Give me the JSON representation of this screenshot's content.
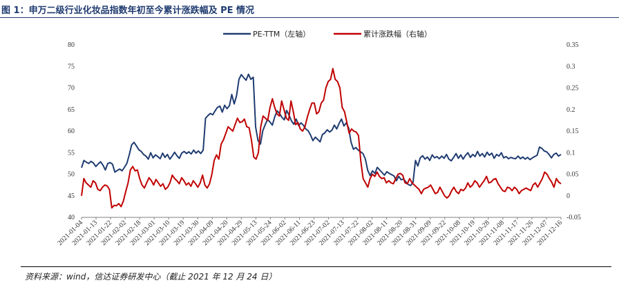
{
  "figure_title": "图 1：申万二级行业化妆品指数年初至今累计涨跌幅及 PE 情况",
  "source_note": "资料来源：wind，信达证券研发中心（截止 2021 年 12 月 24 日）",
  "colors": {
    "pe": "#1f3b70",
    "cum": "#c00000",
    "axis": "#7f7f7f",
    "title": "#1f3b70"
  },
  "chart_data": {
    "type": "line",
    "title": "",
    "legend_position": "top-center",
    "legend": [
      "PE-TTM（左轴）",
      "累计涨跌幅（右轴）"
    ],
    "y_left": {
      "min": 40,
      "max": 80,
      "ticks": [
        "80",
        "75",
        "70",
        "65",
        "60",
        "55",
        "50",
        "45",
        "40"
      ]
    },
    "y_right": {
      "min": -0.05,
      "max": 0.35,
      "ticks": [
        "0.35",
        "0.3",
        "0.25",
        "0.2",
        "0.15",
        "0.1",
        "0.05",
        "0",
        "-0.05"
      ]
    },
    "x_tick_labels": [
      "2021-01-04",
      "2021-01-13",
      "2021-01-22",
      "2021-02-02",
      "2021-02-18",
      "2021-03-01",
      "2021-03-10",
      "2021-03-19",
      "2021-03-30",
      "2021-04-09",
      "2021-04-20",
      "2021-04-29",
      "2021-05-13",
      "2021-05-24",
      "2021-06-02",
      "2021-06-11",
      "2021-06-23",
      "2021-07-02",
      "2021-07-13",
      "2021-07-22",
      "2021-08-02",
      "2021-08-11",
      "2021-08-20",
      "2021-08-31",
      "2021-09-09",
      "2021-09-22",
      "2021-10-08",
      "2021-10-19",
      "2021-10-28",
      "2021-11-08",
      "2021-11-17",
      "2021-11-26",
      "2021-12-07",
      "2021-12-16"
    ],
    "series": [
      {
        "name": "PE-TTM（左轴）",
        "axis": "left",
        "values": [
          51.5,
          53.2,
          52.8,
          52.5,
          53.0,
          52.6,
          51.8,
          52.4,
          52.9,
          52.1,
          51.0,
          52.5,
          52.7,
          52.3,
          50.5,
          50.9,
          51.2,
          50.8,
          51.6,
          52.5,
          54.5,
          56.8,
          57.4,
          56.6,
          55.7,
          55.3,
          54.6,
          54.2,
          53.5,
          55.0,
          53.8,
          54.5,
          54.1,
          53.6,
          54.9,
          53.9,
          54.6,
          53.5,
          54.2,
          55.1,
          54.3,
          53.7,
          54.9,
          55.3,
          54.8,
          55.2,
          54.7,
          55.6,
          54.9,
          55.4,
          54.8,
          55.6,
          63.0,
          63.6,
          64.1,
          63.8,
          64.7,
          65.5,
          65.8,
          64.4,
          66.0,
          65.2,
          65.9,
          68.5,
          66.3,
          68.2,
          72.0,
          73.1,
          72.4,
          71.8,
          73.2,
          72.0,
          72.5,
          61.0,
          57.8,
          57.0,
          60.1,
          61.5,
          62.7,
          62.1,
          61.4,
          63.3,
          64.7,
          64.1,
          63.2,
          62.6,
          64.8,
          63.7,
          62.4,
          61.6,
          62.8,
          61.3,
          61.9,
          61.4,
          60.5,
          60.1,
          59.1,
          57.8,
          58.6,
          58.1,
          57.5,
          59.2,
          59.6,
          60.3,
          59.8,
          60.2,
          61.4,
          60.5,
          61.8,
          62.8,
          61.2,
          61.9,
          60.7,
          57.4,
          55.8,
          56.2,
          55.6,
          55.2,
          54.8,
          53.5,
          50.9,
          49.7,
          50.8,
          50.2,
          51.6,
          51.0,
          50.4,
          49.8,
          50.6,
          50.2,
          49.9,
          49.6,
          48.5,
          49.5,
          48.7,
          48.9,
          48.2,
          47.6,
          47.4,
          48.2,
          53.2,
          51.9,
          53.8,
          54.3,
          53.5,
          54.0,
          53.2,
          54.5,
          53.8,
          54.1,
          53.6,
          54.2,
          53.7,
          54.6,
          53.5,
          53.1,
          53.9,
          54.8,
          53.7,
          54.5,
          53.5,
          54.4,
          55.0,
          53.9,
          54.6,
          54.1,
          55.3,
          54.2,
          54.8,
          54.0,
          55.1,
          54.4,
          54.9,
          53.7,
          54.6,
          54.2,
          55.0,
          53.8,
          54.1,
          53.6,
          53.9,
          53.7,
          53.6,
          54.2,
          53.6,
          54.0,
          53.5,
          53.9,
          53.4,
          53.8,
          54.1,
          54.4,
          56.3,
          56.0,
          55.4,
          55.2,
          54.6,
          53.8,
          54.6,
          54.9,
          54.2,
          54.6
        ]
      },
      {
        "name": "累计涨跌幅（右轴）",
        "axis": "right",
        "values": [
          0.0,
          0.04,
          0.03,
          0.025,
          0.02,
          0.035,
          0.03,
          0.015,
          0.012,
          0.02,
          0.025,
          0.023,
          0.015,
          -0.028,
          -0.022,
          -0.023,
          -0.018,
          -0.025,
          -0.012,
          0.01,
          0.03,
          0.06,
          0.068,
          0.058,
          0.06,
          0.04,
          0.025,
          0.018,
          0.03,
          0.042,
          0.035,
          0.025,
          0.038,
          0.03,
          0.022,
          0.028,
          0.015,
          0.02,
          0.03,
          0.048,
          0.04,
          0.035,
          0.028,
          0.042,
          0.035,
          0.025,
          0.03,
          0.022,
          0.035,
          0.028,
          0.02,
          0.03,
          0.048,
          0.025,
          0.018,
          0.028,
          0.05,
          0.082,
          0.095,
          0.085,
          0.12,
          0.13,
          0.145,
          0.16,
          0.155,
          0.15,
          0.165,
          0.18,
          0.17,
          0.172,
          0.178,
          0.16,
          0.158,
          0.13,
          0.09,
          0.085,
          0.1,
          0.16,
          0.185,
          0.18,
          0.175,
          0.205,
          0.225,
          0.205,
          0.19,
          0.185,
          0.22,
          0.2,
          0.18,
          0.175,
          0.22,
          0.195,
          0.165,
          0.17,
          0.155,
          0.15,
          0.16,
          0.182,
          0.2,
          0.215,
          0.215,
          0.19,
          0.195,
          0.215,
          0.222,
          0.25,
          0.265,
          0.27,
          0.295,
          0.27,
          0.265,
          0.25,
          0.205,
          0.195,
          0.17,
          0.145,
          0.155,
          0.15,
          0.148,
          0.14,
          0.08,
          0.04,
          0.03,
          0.02,
          0.04,
          0.05,
          0.045,
          0.055,
          0.045,
          0.04,
          0.042,
          0.03,
          0.035,
          0.03,
          0.028,
          0.04,
          0.05,
          0.052,
          0.048,
          0.03,
          0.028,
          0.04,
          0.03,
          0.025,
          0.02,
          0.015,
          0.005,
          0.015,
          0.018,
          0.02,
          0.025,
          0.015,
          0.005,
          0.008,
          0.02,
          0.01,
          0.0,
          -0.005,
          0.0,
          0.012,
          0.02,
          0.01,
          0.005,
          0.015,
          0.012,
          0.018,
          0.03,
          0.02,
          0.025,
          0.035,
          0.03,
          0.02,
          0.028,
          0.035,
          0.045,
          0.03,
          0.032,
          0.038,
          0.04,
          0.028,
          0.02,
          0.012,
          0.01,
          0.02,
          0.018,
          0.012,
          0.02,
          0.015,
          0.005,
          0.012,
          0.015,
          0.018,
          0.015,
          0.012,
          0.025,
          0.03,
          0.02,
          0.03,
          0.04,
          0.055,
          0.05,
          0.04,
          0.032,
          0.02,
          0.04,
          0.032,
          0.028
        ]
      }
    ]
  }
}
